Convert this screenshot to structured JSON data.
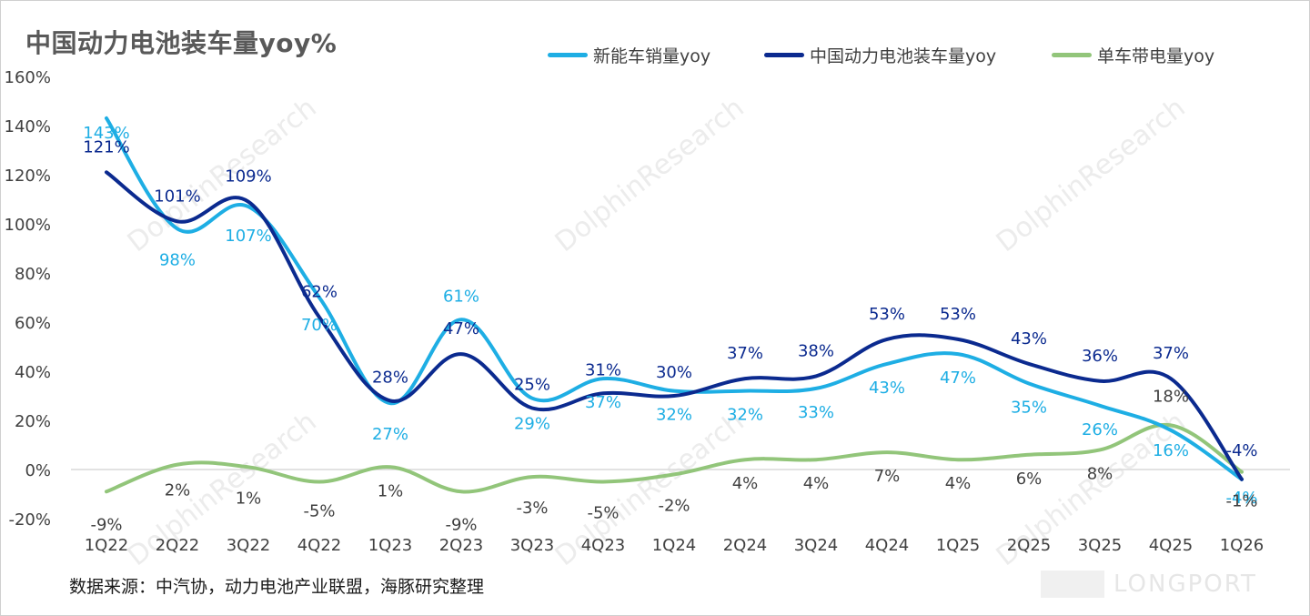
{
  "title": "中国动力电池装车量yoy%",
  "source": "数据来源：中汽协，动力电池产业联盟，海豚研究整理",
  "watermark": "DolphinResearch",
  "brand_watermark": "LONGPORT",
  "colors": {
    "nev_sales": "#1eaee4",
    "battery_install": "#0b2a8f",
    "per_vehicle": "#92c57a",
    "axis_text": "#404040",
    "label_dark": "#404040"
  },
  "legend": [
    {
      "name": "新能车销量yoy",
      "color": "#1eaee4"
    },
    {
      "name": "中国动力电池装车量yoy",
      "color": "#0b2a8f"
    },
    {
      "name": "单车带电量yoy",
      "color": "#92c57a"
    }
  ],
  "chart_data": {
    "type": "line",
    "title": "中国动力电池装车量yoy%",
    "xlabel": "",
    "ylabel": "",
    "categories": [
      "1Q22",
      "2Q22",
      "3Q22",
      "4Q22",
      "1Q23",
      "2Q23",
      "3Q23",
      "4Q23",
      "1Q24",
      "2Q24",
      "3Q24",
      "4Q24",
      "1Q25",
      "2Q25",
      "3Q25",
      "4Q25",
      "1Q26"
    ],
    "ylim": [
      -20,
      160
    ],
    "yticks": [
      -20,
      0,
      20,
      40,
      60,
      80,
      100,
      120,
      140,
      160
    ],
    "ytick_labels": [
      "-20%",
      "0%",
      "20%",
      "40%",
      "60%",
      "80%",
      "100%",
      "120%",
      "140%",
      "160%"
    ],
    "grid": false,
    "legend_position": "top",
    "series": [
      {
        "name": "新能车销量yoy",
        "values": [
          143,
          98,
          107,
          70,
          27,
          61,
          29,
          37,
          32,
          32,
          33,
          43,
          47,
          35,
          26,
          16,
          -4
        ],
        "labels": [
          "143%",
          "98%",
          "107%",
          "70%",
          "27%",
          "61%",
          "29%",
          "37%",
          "32%",
          "32%",
          "33%",
          "43%",
          "47%",
          "35%",
          "26%",
          "16%",
          "-4%"
        ]
      },
      {
        "name": "中国动力电池装车量yoy",
        "values": [
          121,
          101,
          109,
          62,
          28,
          47,
          25,
          31,
          30,
          37,
          38,
          53,
          53,
          43,
          36,
          37,
          -4
        ],
        "labels": [
          "121%",
          "101%",
          "109%",
          "62%",
          "28%",
          "47%",
          "25%",
          "31%",
          "30%",
          "37%",
          "38%",
          "53%",
          "53%",
          "43%",
          "36%",
          "37%",
          "-4%"
        ]
      },
      {
        "name": "单车带电量yoy",
        "values": [
          -9,
          2,
          1,
          -5,
          1,
          -9,
          -3,
          -5,
          -2,
          4,
          4,
          7,
          4,
          6,
          8,
          18,
          -1
        ],
        "labels": [
          "-9%",
          "2%",
          "1%",
          "-5%",
          "1%",
          "-9%",
          "-3%",
          "-5%",
          "-2%",
          "4%",
          "4%",
          "7%",
          "4%",
          "6%",
          "8%",
          "18%",
          "-1%"
        ]
      }
    ]
  }
}
